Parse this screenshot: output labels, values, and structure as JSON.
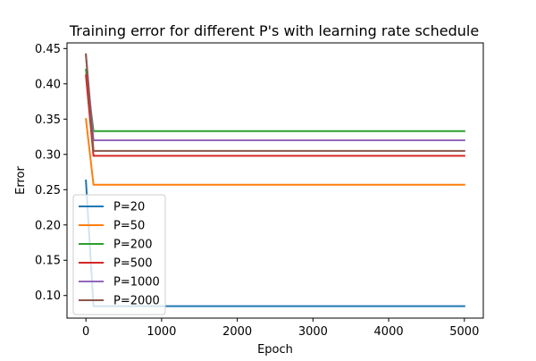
{
  "chart_data": {
    "type": "line",
    "title": "Training error for different P's with learning rate schedule",
    "xlabel": "Epoch",
    "ylabel": "Error",
    "xlim": [
      -250,
      5250
    ],
    "ylim": [
      0.068,
      0.458
    ],
    "xticks": [
      0,
      1000,
      2000,
      3000,
      4000,
      5000
    ],
    "yticks": [
      0.1,
      0.15,
      0.2,
      0.25,
      0.3,
      0.35,
      0.4,
      0.45
    ],
    "grid": false,
    "legend_position": "lower-left",
    "series": [
      {
        "name": "P=20",
        "color": "#1f77b4",
        "x": [
          0,
          100,
          5000
        ],
        "y": [
          0.263,
          0.085,
          0.085
        ]
      },
      {
        "name": "P=50",
        "color": "#ff7f0e",
        "x": [
          0,
          100,
          5000
        ],
        "y": [
          0.35,
          0.257,
          0.257
        ]
      },
      {
        "name": "P=200",
        "color": "#2ca02c",
        "x": [
          0,
          100,
          5000
        ],
        "y": [
          0.42,
          0.333,
          0.333
        ]
      },
      {
        "name": "P=500",
        "color": "#d62728",
        "x": [
          0,
          100,
          5000
        ],
        "y": [
          0.412,
          0.298,
          0.298
        ]
      },
      {
        "name": "P=1000",
        "color": "#9467bd",
        "x": [
          0,
          100,
          5000
        ],
        "y": [
          0.44,
          0.32,
          0.32
        ]
      },
      {
        "name": "P=2000",
        "color": "#8c564b",
        "x": [
          0,
          100,
          5000
        ],
        "y": [
          0.442,
          0.305,
          0.305
        ]
      }
    ]
  }
}
